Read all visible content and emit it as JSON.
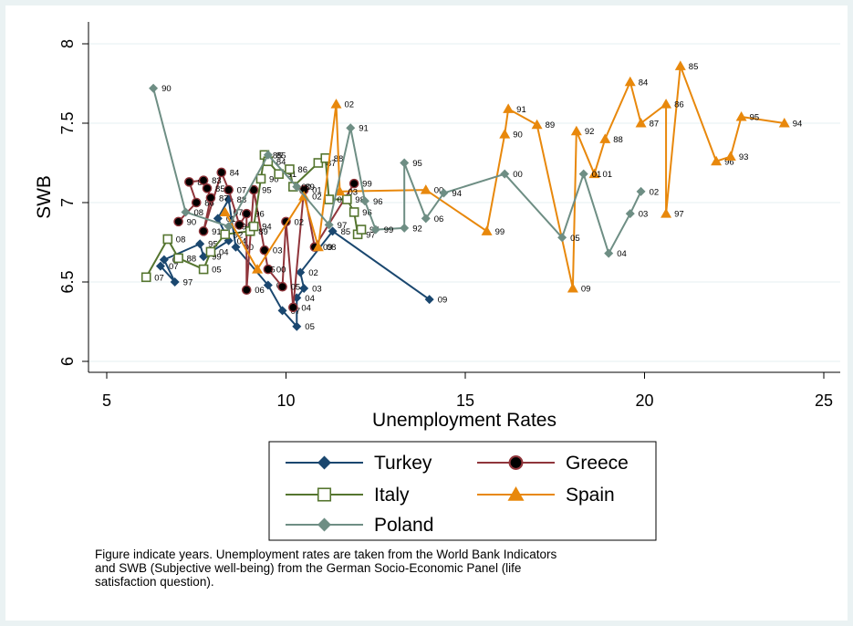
{
  "chart_data": {
    "type": "scatter",
    "connected": true,
    "xlabel": "Unemployment Rates",
    "ylabel": "SWB",
    "xlim": [
      5,
      25
    ],
    "ylim": [
      6,
      8
    ],
    "xticks": [
      "5",
      "10",
      "15",
      "20",
      "25"
    ],
    "yticks": [
      "6",
      "6.5",
      "7",
      "7.5",
      "8"
    ],
    "grid": "horizontal",
    "legend_position": "bottom",
    "note": [
      "Figure indicate years. Unemployment rates are taken from the World Bank Indicators",
      "and SWB (Subjective well-being) from the German Socio-Economic Panel (life",
      "satisfaction question)."
    ],
    "series": [
      {
        "name": "Turkey",
        "color": "#1a476f",
        "marker": "diamond",
        "points": [
          {
            "x": 6.5,
            "y": 6.6,
            "label": "07"
          },
          {
            "x": 6.9,
            "y": 6.5,
            "label": "97"
          },
          {
            "x": 6.6,
            "y": 6.64,
            "label": "06"
          },
          {
            "x": 7.6,
            "y": 6.74,
            "label": "95"
          },
          {
            "x": 7.7,
            "y": 6.66,
            "label": "99"
          },
          {
            "x": 8.4,
            "y": 6.76,
            "label": "04"
          },
          {
            "x": 8.1,
            "y": 6.9,
            "label": "01"
          },
          {
            "x": 8.4,
            "y": 7.02,
            "label": "88"
          },
          {
            "x": 8.6,
            "y": 6.72,
            "label": "00"
          },
          {
            "x": 9.5,
            "y": 6.48,
            "label": "06"
          },
          {
            "x": 9.9,
            "y": 6.32,
            "label": "07"
          },
          {
            "x": 10.3,
            "y": 6.22,
            "label": "05"
          },
          {
            "x": 10.3,
            "y": 6.4,
            "label": "04"
          },
          {
            "x": 10.5,
            "y": 6.46,
            "label": "03"
          },
          {
            "x": 10.4,
            "y": 6.56,
            "label": "02"
          },
          {
            "x": 11.3,
            "y": 6.82,
            "label": "85"
          },
          {
            "x": 14.0,
            "y": 6.39,
            "label": "09"
          }
        ]
      },
      {
        "name": "Greece",
        "color": "#90353b",
        "marker": "circle",
        "points": [
          {
            "x": 7.0,
            "y": 6.88,
            "label": "90"
          },
          {
            "x": 7.5,
            "y": 7.0,
            "label": "86"
          },
          {
            "x": 7.3,
            "y": 7.13,
            "label": "89"
          },
          {
            "x": 7.7,
            "y": 7.14,
            "label": "83"
          },
          {
            "x": 7.8,
            "y": 7.09,
            "label": "85"
          },
          {
            "x": 7.9,
            "y": 7.03,
            "label": "87"
          },
          {
            "x": 7.7,
            "y": 6.82,
            "label": "91"
          },
          {
            "x": 8.2,
            "y": 7.19,
            "label": "84"
          },
          {
            "x": 8.4,
            "y": 7.08,
            "label": "07"
          },
          {
            "x": 8.7,
            "y": 6.86,
            "label": "08"
          },
          {
            "x": 8.9,
            "y": 6.93,
            "label": "96"
          },
          {
            "x": 8.9,
            "y": 6.45,
            "label": "06"
          },
          {
            "x": 9.1,
            "y": 7.08,
            "label": "95"
          },
          {
            "x": 9.4,
            "y": 6.7,
            "label": "03"
          },
          {
            "x": 9.5,
            "y": 6.58,
            "label": "00"
          },
          {
            "x": 9.9,
            "y": 6.47,
            "label": "05"
          },
          {
            "x": 10.0,
            "y": 6.88,
            "label": "02"
          },
          {
            "x": 10.2,
            "y": 6.34,
            "label": "04"
          },
          {
            "x": 10.5,
            "y": 7.08,
            "label": "01"
          },
          {
            "x": 10.8,
            "y": 6.72,
            "label": "09"
          },
          {
            "x": 11.9,
            "y": 7.12,
            "label": "99"
          }
        ]
      },
      {
        "name": "Italy",
        "color": "#55752f",
        "marker": "square-hollow",
        "points": [
          {
            "x": 6.1,
            "y": 6.53,
            "label": "07"
          },
          {
            "x": 6.7,
            "y": 6.77,
            "label": "08"
          },
          {
            "x": 7.0,
            "y": 6.65,
            "label": "88"
          },
          {
            "x": 7.7,
            "y": 6.58,
            "label": "05"
          },
          {
            "x": 7.9,
            "y": 6.69,
            "label": "04"
          },
          {
            "x": 8.3,
            "y": 6.8,
            "label": "92"
          },
          {
            "x": 9.0,
            "y": 6.82,
            "label": "89"
          },
          {
            "x": 9.1,
            "y": 6.85,
            "label": "94"
          },
          {
            "x": 9.3,
            "y": 7.15,
            "label": "90"
          },
          {
            "x": 9.4,
            "y": 7.3,
            "label": "85"
          },
          {
            "x": 9.5,
            "y": 7.26,
            "label": "84"
          },
          {
            "x": 9.8,
            "y": 7.18,
            "label": "91"
          },
          {
            "x": 10.1,
            "y": 7.21,
            "label": "86"
          },
          {
            "x": 10.2,
            "y": 7.1,
            "label": "00"
          },
          {
            "x": 10.9,
            "y": 7.25,
            "label": "87"
          },
          {
            "x": 11.1,
            "y": 7.28,
            "label": "88"
          },
          {
            "x": 11.2,
            "y": 7.02,
            "label": "03"
          },
          {
            "x": 11.7,
            "y": 7.02,
            "label": "98"
          },
          {
            "x": 11.9,
            "y": 6.94,
            "label": "96"
          },
          {
            "x": 12.0,
            "y": 6.8,
            "label": "97"
          },
          {
            "x": 12.1,
            "y": 6.83,
            "label": "97"
          }
        ]
      },
      {
        "name": "Spain",
        "color": "#e8880c",
        "marker": "triangle",
        "points": [
          {
            "x": 8.3,
            "y": 6.94,
            "label": "07"
          },
          {
            "x": 9.2,
            "y": 6.58,
            "label": "05"
          },
          {
            "x": 10.5,
            "y": 7.04,
            "label": "02"
          },
          {
            "x": 10.9,
            "y": 6.72,
            "label": "08"
          },
          {
            "x": 11.4,
            "y": 7.62,
            "label": "02"
          },
          {
            "x": 11.5,
            "y": 7.07,
            "label": "03"
          },
          {
            "x": 13.9,
            "y": 7.08,
            "label": "00"
          },
          {
            "x": 15.6,
            "y": 6.82,
            "label": "99"
          },
          {
            "x": 16.1,
            "y": 7.43,
            "label": "90"
          },
          {
            "x": 16.2,
            "y": 7.59,
            "label": "91"
          },
          {
            "x": 17.0,
            "y": 7.49,
            "label": "89"
          },
          {
            "x": 18.0,
            "y": 6.46,
            "label": "09"
          },
          {
            "x": 18.1,
            "y": 7.45,
            "label": "92"
          },
          {
            "x": 18.6,
            "y": 7.18,
            "label": "01"
          },
          {
            "x": 18.9,
            "y": 7.4,
            "label": "88"
          },
          {
            "x": 19.6,
            "y": 7.76,
            "label": "84"
          },
          {
            "x": 19.9,
            "y": 7.5,
            "label": "87"
          },
          {
            "x": 20.6,
            "y": 7.62,
            "label": "86"
          },
          {
            "x": 20.6,
            "y": 6.93,
            "label": "97"
          },
          {
            "x": 21.0,
            "y": 7.86,
            "label": "85"
          },
          {
            "x": 22.0,
            "y": 7.26,
            "label": "96"
          },
          {
            "x": 22.4,
            "y": 7.29,
            "label": "93"
          },
          {
            "x": 22.7,
            "y": 7.54,
            "label": "95"
          },
          {
            "x": 23.9,
            "y": 7.5,
            "label": "94"
          }
        ]
      },
      {
        "name": "Poland",
        "color": "#6e8e84",
        "marker": "diamond",
        "points": [
          {
            "x": 6.3,
            "y": 7.72,
            "label": "90"
          },
          {
            "x": 7.2,
            "y": 6.94,
            "label": "08"
          },
          {
            "x": 8.4,
            "y": 6.85,
            "label": "09"
          },
          {
            "x": 9.5,
            "y": 7.3,
            "label": "85"
          },
          {
            "x": 10.3,
            "y": 7.1,
            "label": "89"
          },
          {
            "x": 11.2,
            "y": 6.86,
            "label": "97"
          },
          {
            "x": 11.8,
            "y": 7.47,
            "label": "91"
          },
          {
            "x": 12.2,
            "y": 7.01,
            "label": "96"
          },
          {
            "x": 12.5,
            "y": 6.83,
            "label": "99"
          },
          {
            "x": 13.3,
            "y": 6.84,
            "label": "92"
          },
          {
            "x": 13.3,
            "y": 7.25,
            "label": "95"
          },
          {
            "x": 13.9,
            "y": 6.9,
            "label": "06"
          },
          {
            "x": 14.4,
            "y": 7.06,
            "label": "94"
          },
          {
            "x": 16.1,
            "y": 7.18,
            "label": "00"
          },
          {
            "x": 17.7,
            "y": 6.78,
            "label": "05"
          },
          {
            "x": 18.3,
            "y": 7.18,
            "label": "01"
          },
          {
            "x": 19.0,
            "y": 6.68,
            "label": "04"
          },
          {
            "x": 19.6,
            "y": 6.93,
            "label": "03"
          },
          {
            "x": 19.9,
            "y": 7.07,
            "label": "02"
          }
        ]
      }
    ]
  }
}
